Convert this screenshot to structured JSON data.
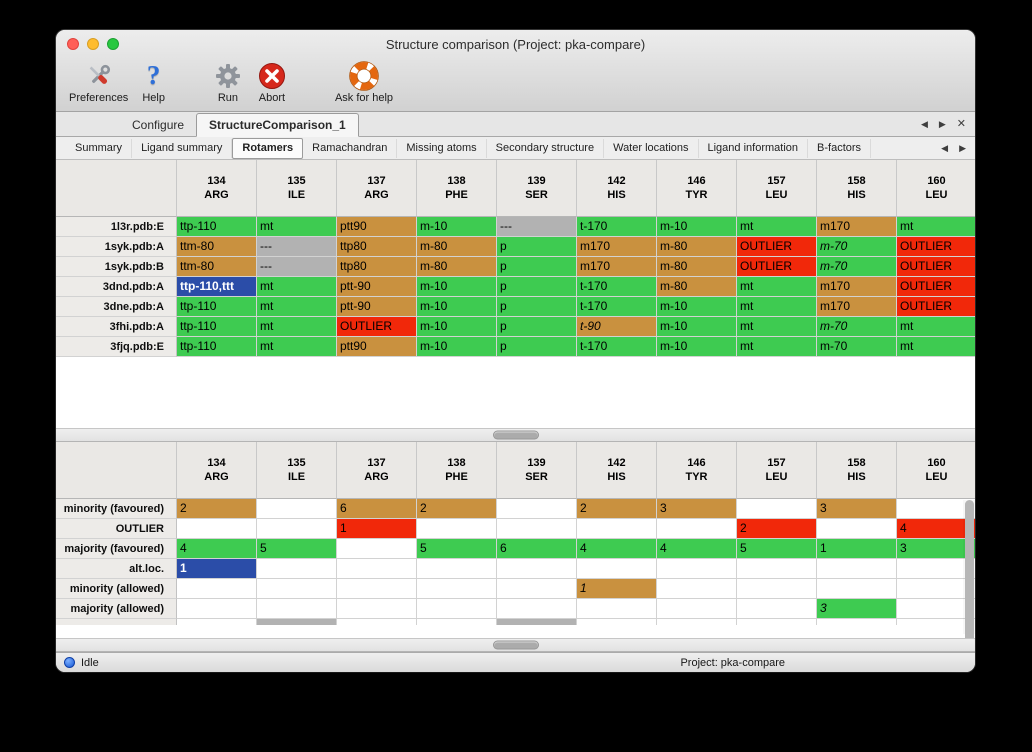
{
  "window": {
    "title": "Structure comparison (Project: pka-compare)"
  },
  "toolbar": {
    "items": [
      {
        "label": "Preferences",
        "icon": "tools-icon"
      },
      {
        "label": "Help",
        "icon": "question-mark-icon"
      },
      {
        "label": "Run",
        "icon": "gear-icon"
      },
      {
        "label": "Abort",
        "icon": "abort-icon"
      },
      {
        "label": "Ask for help",
        "icon": "lifebuoy-icon"
      }
    ]
  },
  "tabs": {
    "items": [
      {
        "label": "Configure"
      },
      {
        "label": "StructureComparison_1"
      }
    ],
    "active": "StructureComparison_1"
  },
  "subtabs": {
    "items": [
      "Summary",
      "Ligand summary",
      "Rotamers",
      "Ramachandran",
      "Missing atoms",
      "Secondary structure",
      "Water locations",
      "Ligand information",
      "B-factors"
    ],
    "active": "Rotamers"
  },
  "colors": {
    "majority_green": "#3ecb51",
    "minority_tan": "#c9913f",
    "outlier_red": "#f1280a",
    "missing_gray": "#b2b2b2",
    "altloc_blue": "#2b4da8"
  },
  "columns": [
    {
      "num": "134",
      "res": "ARG"
    },
    {
      "num": "135",
      "res": "ILE"
    },
    {
      "num": "137",
      "res": "ARG"
    },
    {
      "num": "138",
      "res": "PHE"
    },
    {
      "num": "139",
      "res": "SER"
    },
    {
      "num": "142",
      "res": "HIS"
    },
    {
      "num": "146",
      "res": "TYR"
    },
    {
      "num": "157",
      "res": "LEU"
    },
    {
      "num": "158",
      "res": "HIS"
    },
    {
      "num": "160",
      "res": "LEU"
    }
  ],
  "structures_table": {
    "rows": [
      {
        "label": "1l3r.pdb:E",
        "cells": [
          {
            "t": "ttp-110",
            "s": "green"
          },
          {
            "t": "mt",
            "s": "green"
          },
          {
            "t": "ptt90",
            "s": "tan"
          },
          {
            "t": "m-10",
            "s": "green"
          },
          {
            "t": "---",
            "s": "gray"
          },
          {
            "t": "t-170",
            "s": "green"
          },
          {
            "t": "m-10",
            "s": "green"
          },
          {
            "t": "mt",
            "s": "green"
          },
          {
            "t": "m170",
            "s": "tan"
          },
          {
            "t": "mt",
            "s": "green"
          }
        ]
      },
      {
        "label": "1syk.pdb:A",
        "cells": [
          {
            "t": "ttm-80",
            "s": "tan"
          },
          {
            "t": "---",
            "s": "gray"
          },
          {
            "t": "ttp80",
            "s": "tan"
          },
          {
            "t": "m-80",
            "s": "tan"
          },
          {
            "t": "p",
            "s": "green"
          },
          {
            "t": "m170",
            "s": "tan"
          },
          {
            "t": "m-80",
            "s": "tan"
          },
          {
            "t": "OUTLIER",
            "s": "red"
          },
          {
            "t": "m-70",
            "s": "green",
            "i": true
          },
          {
            "t": "OUTLIER",
            "s": "red"
          }
        ]
      },
      {
        "label": "1syk.pdb:B",
        "cells": [
          {
            "t": "ttm-80",
            "s": "tan"
          },
          {
            "t": "---",
            "s": "gray"
          },
          {
            "t": "ttp80",
            "s": "tan"
          },
          {
            "t": "m-80",
            "s": "tan"
          },
          {
            "t": "p",
            "s": "green"
          },
          {
            "t": "m170",
            "s": "tan"
          },
          {
            "t": "m-80",
            "s": "tan"
          },
          {
            "t": "OUTLIER",
            "s": "red"
          },
          {
            "t": "m-70",
            "s": "green",
            "i": true
          },
          {
            "t": "OUTLIER",
            "s": "red"
          }
        ]
      },
      {
        "label": "3dnd.pdb:A",
        "cells": [
          {
            "t": "ttp-110,ttt",
            "s": "blue"
          },
          {
            "t": "mt",
            "s": "green"
          },
          {
            "t": "ptt-90",
            "s": "tan"
          },
          {
            "t": "m-10",
            "s": "green"
          },
          {
            "t": "p",
            "s": "green"
          },
          {
            "t": "t-170",
            "s": "green"
          },
          {
            "t": "m-80",
            "s": "tan"
          },
          {
            "t": "mt",
            "s": "green"
          },
          {
            "t": "m170",
            "s": "tan"
          },
          {
            "t": "OUTLIER",
            "s": "red"
          }
        ]
      },
      {
        "label": "3dne.pdb:A",
        "cells": [
          {
            "t": "ttp-110",
            "s": "green"
          },
          {
            "t": "mt",
            "s": "green"
          },
          {
            "t": "ptt-90",
            "s": "tan"
          },
          {
            "t": "m-10",
            "s": "green"
          },
          {
            "t": "p",
            "s": "green"
          },
          {
            "t": "t-170",
            "s": "green"
          },
          {
            "t": "m-10",
            "s": "green"
          },
          {
            "t": "mt",
            "s": "green"
          },
          {
            "t": "m170",
            "s": "tan"
          },
          {
            "t": "OUTLIER",
            "s": "red"
          }
        ]
      },
      {
        "label": "3fhi.pdb:A",
        "cells": [
          {
            "t": "ttp-110",
            "s": "green"
          },
          {
            "t": "mt",
            "s": "green"
          },
          {
            "t": "OUTLIER",
            "s": "red"
          },
          {
            "t": "m-10",
            "s": "green"
          },
          {
            "t": "p",
            "s": "green"
          },
          {
            "t": "t-90",
            "s": "tan",
            "i": true
          },
          {
            "t": "m-10",
            "s": "green"
          },
          {
            "t": "mt",
            "s": "green"
          },
          {
            "t": "m-70",
            "s": "green",
            "i": true
          },
          {
            "t": "mt",
            "s": "green"
          }
        ]
      },
      {
        "label": "3fjq.pdb:E",
        "cells": [
          {
            "t": "ttp-110",
            "s": "green"
          },
          {
            "t": "mt",
            "s": "green"
          },
          {
            "t": "ptt90",
            "s": "tan"
          },
          {
            "t": "m-10",
            "s": "green"
          },
          {
            "t": "p",
            "s": "green"
          },
          {
            "t": "t-170",
            "s": "green"
          },
          {
            "t": "m-10",
            "s": "green"
          },
          {
            "t": "mt",
            "s": "green"
          },
          {
            "t": "m-70",
            "s": "green"
          },
          {
            "t": "mt",
            "s": "green"
          }
        ]
      }
    ]
  },
  "summary_table": {
    "rows": [
      {
        "label": "minority (favoured)",
        "cells": [
          {
            "t": "2",
            "s": "tan"
          },
          {},
          {
            "t": "6",
            "s": "tan"
          },
          {
            "t": "2",
            "s": "tan"
          },
          {},
          {
            "t": "2",
            "s": "tan"
          },
          {
            "t": "3",
            "s": "tan"
          },
          {},
          {
            "t": "3",
            "s": "tan"
          },
          {}
        ]
      },
      {
        "label": "OUTLIER",
        "cells": [
          {},
          {},
          {
            "t": "1",
            "s": "red"
          },
          {},
          {},
          {},
          {},
          {
            "t": "2",
            "s": "red"
          },
          {},
          {
            "t": "4",
            "s": "red"
          }
        ]
      },
      {
        "label": "majority (favoured)",
        "cells": [
          {
            "t": "4",
            "s": "green"
          },
          {
            "t": "5",
            "s": "green"
          },
          {},
          {
            "t": "5",
            "s": "green"
          },
          {
            "t": "6",
            "s": "green"
          },
          {
            "t": "4",
            "s": "green"
          },
          {
            "t": "4",
            "s": "green"
          },
          {
            "t": "5",
            "s": "green"
          },
          {
            "t": "1",
            "s": "green"
          },
          {
            "t": "3",
            "s": "green"
          }
        ]
      },
      {
        "label": "alt.loc.",
        "cells": [
          {
            "t": "1",
            "s": "blue"
          },
          {},
          {},
          {},
          {},
          {},
          {},
          {},
          {},
          {}
        ]
      },
      {
        "label": "minority (allowed)",
        "cells": [
          {},
          {},
          {},
          {},
          {},
          {
            "t": "1",
            "s": "tan",
            "i": true
          },
          {},
          {},
          {},
          {}
        ]
      },
      {
        "label": "majority (allowed)",
        "cells": [
          {},
          {},
          {},
          {},
          {},
          {},
          {},
          {},
          {
            "t": "3",
            "s": "green",
            "i": true
          },
          {}
        ]
      }
    ],
    "partial_row": {
      "cells": [
        {},
        {
          "s": "gray"
        },
        {},
        {},
        {
          "s": "gray"
        },
        {},
        {},
        {},
        {},
        {}
      ]
    }
  },
  "tab_nav": {
    "prev": "◀",
    "next": "▶",
    "close": "✕"
  },
  "status": {
    "left": "Idle",
    "right": "Project: pka-compare"
  }
}
